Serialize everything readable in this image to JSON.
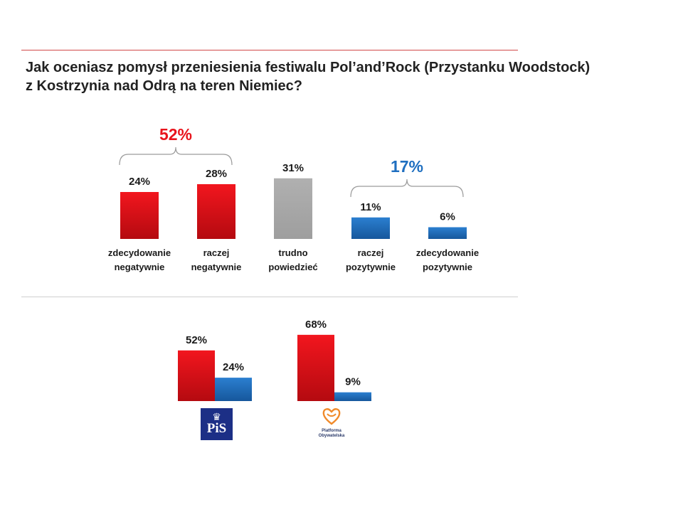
{
  "title_line1": "Jak oceniasz pomysł przeniesienia festiwalu Pol’and’Rock (Przystanku Woodstock)",
  "title_line2": "z Kostrzynia nad Odrą na teren Niemiec?",
  "colors": {
    "negative": "#e8141c",
    "neutral": "#a9a9a9",
    "positive": "#1f6fc0",
    "negative_text": "#e8141c",
    "positive_text": "#1f6fc0"
  },
  "logos": {
    "pis": {
      "name": "pis-logo",
      "text": "PiS"
    },
    "po": {
      "name": "po-logo",
      "text": "Platforma Obywatelska"
    }
  },
  "chart_data": [
    {
      "type": "bar",
      "categories": [
        [
          "zdecydowanie",
          "negatywnie"
        ],
        [
          "raczej",
          "negatywnie"
        ],
        [
          "trudno",
          "powiedzieć"
        ],
        [
          "raczej",
          "pozytywnie"
        ],
        [
          "zdecydowanie",
          "pozytywnie"
        ]
      ],
      "values": [
        24,
        28,
        31,
        11,
        6
      ],
      "value_labels": [
        "24%",
        "28%",
        "31%",
        "11%",
        "6%"
      ],
      "bar_colors": [
        "negative",
        "negative",
        "neutral",
        "positive",
        "positive"
      ],
      "group_annotations": [
        {
          "label": "52%",
          "color": "negative",
          "from": 0,
          "to": 1
        },
        {
          "label": "17%",
          "color": "positive",
          "from": 3,
          "to": 4
        }
      ]
    },
    {
      "type": "bar",
      "categories": [
        "PiS",
        "Platforma Obywatelska"
      ],
      "series": [
        {
          "color": "negative",
          "values": [
            52,
            68
          ],
          "value_labels": [
            "52%",
            "68%"
          ]
        },
        {
          "color": "positive",
          "values": [
            24,
            9
          ],
          "value_labels": [
            "24%",
            "9%"
          ]
        }
      ]
    }
  ]
}
